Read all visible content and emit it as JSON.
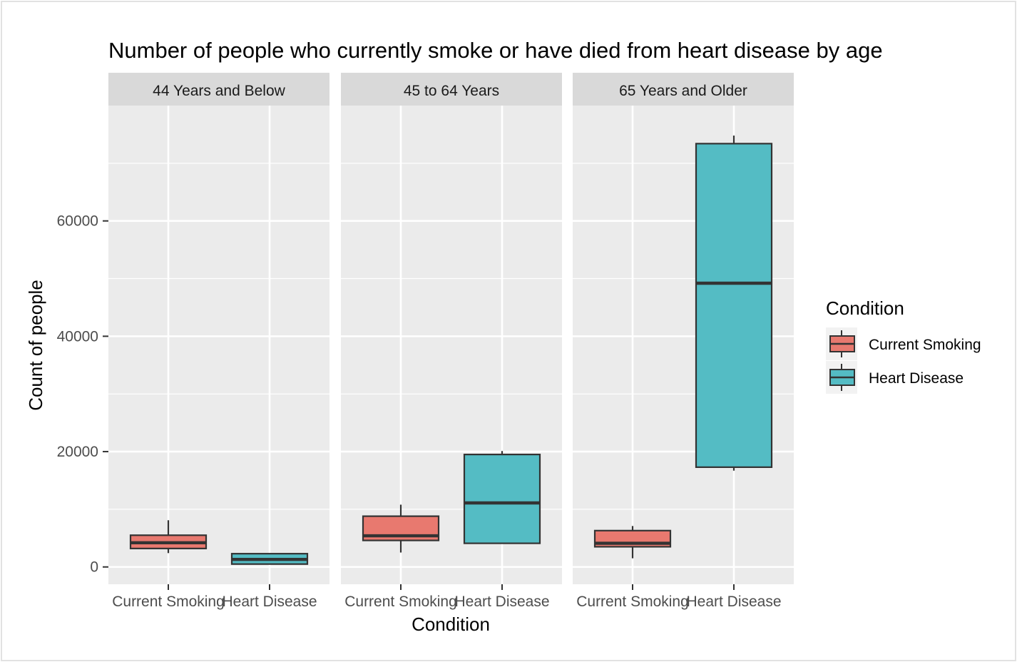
{
  "chart_data": {
    "type": "boxplot",
    "title": "Number of people who currently smoke or have died from heart disease by age",
    "xlabel": "Condition",
    "ylabel": "Count of people",
    "ylim": [
      -3000,
      80000
    ],
    "yticks": [
      0,
      20000,
      40000,
      60000
    ],
    "ytick_labels": [
      "0",
      "20000",
      "40000",
      "60000"
    ],
    "categories": [
      "Current Smoking",
      "Heart Disease"
    ],
    "grid": true,
    "legend": {
      "title": "Condition",
      "position": "right",
      "entries": [
        "Current Smoking",
        "Heart Disease"
      ]
    },
    "colors": {
      "Current Smoking": "#e8796f",
      "Heart Disease": "#54bcc4",
      "panel_background": "#ebebeb",
      "strip_background": "#d9d9d9"
    },
    "facets": [
      {
        "label": "44 Years and Below",
        "boxes": [
          {
            "category": "Current Smoking",
            "min": 2400,
            "q1": 3200,
            "median": 4200,
            "q3": 5500,
            "max": 8100
          },
          {
            "category": "Heart Disease",
            "min": 500,
            "q1": 500,
            "median": 1300,
            "q3": 2300,
            "max": 2300
          }
        ]
      },
      {
        "label": "45 to 64 Years",
        "boxes": [
          {
            "category": "Current Smoking",
            "min": 2500,
            "q1": 4600,
            "median": 5400,
            "q3": 8800,
            "max": 10800
          },
          {
            "category": "Heart Disease",
            "min": 4100,
            "q1": 4100,
            "median": 11100,
            "q3": 19500,
            "max": 20100
          }
        ]
      },
      {
        "label": "65 Years and Older",
        "boxes": [
          {
            "category": "Current Smoking",
            "min": 1500,
            "q1": 3500,
            "median": 4100,
            "q3": 6300,
            "max": 7100
          },
          {
            "category": "Heart Disease",
            "min": 16700,
            "q1": 17300,
            "median": 49200,
            "q3": 73400,
            "max": 74800
          }
        ]
      }
    ]
  }
}
